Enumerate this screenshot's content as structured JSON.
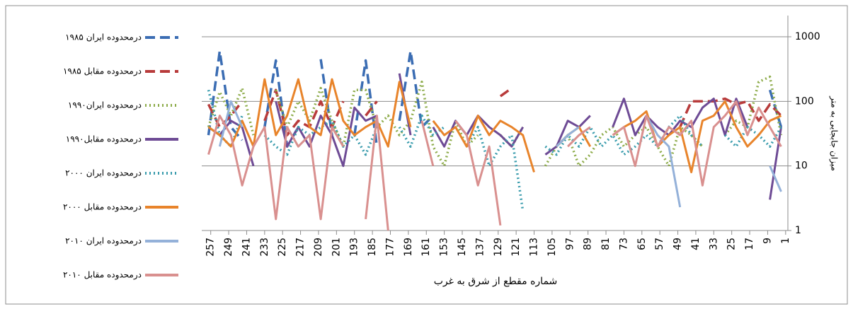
{
  "chart_data": {
    "type": "line",
    "x_label": "شماره مقطع از شرق به غرب",
    "y_label": "میزان جابجایی به متر",
    "log_scale_y": true,
    "grid": true,
    "legend": "left",
    "xlim": [
      261,
      0
    ],
    "ylim": [
      1,
      1000
    ],
    "yticks": [
      1,
      10,
      100,
      1000
    ],
    "xticks": [
      257,
      249,
      241,
      233,
      225,
      217,
      209,
      201,
      193,
      185,
      177,
      169,
      161,
      153,
      145,
      137,
      129,
      121,
      113,
      105,
      97,
      89,
      81,
      73,
      65,
      57,
      49,
      41,
      33,
      25,
      17,
      9,
      1
    ],
    "x": [
      258,
      253,
      248,
      243,
      238,
      233,
      228,
      223,
      218,
      213,
      208,
      203,
      198,
      193,
      188,
      183,
      178,
      173,
      168,
      163,
      158,
      153,
      148,
      143,
      138,
      133,
      128,
      123,
      118,
      113,
      108,
      103,
      98,
      93,
      88,
      83,
      78,
      73,
      68,
      63,
      58,
      53,
      48,
      43,
      38,
      33,
      28,
      23,
      18,
      13,
      8,
      3
    ],
    "series": [
      {
        "name": "۱۹۸۵ درمحدوده ایران",
        "color": "#3b6db3",
        "style": "dashed",
        "values": [
          30,
          600,
          40,
          25,
          null,
          40,
          430,
          20,
          40,
          null,
          450,
          30,
          null,
          30,
          430,
          20,
          null,
          50,
          600,
          40,
          60,
          null,
          30,
          null,
          40,
          null,
          30,
          null,
          null,
          null,
          null,
          null,
          null,
          null,
          null,
          null,
          null,
          null,
          null,
          null,
          null,
          null,
          null,
          null,
          null,
          null,
          null,
          null,
          null,
          null,
          150,
          40
        ]
      },
      {
        "name": "۱۹۸۵ درمحدوده مقابل",
        "color": "#b83b3b",
        "style": "dashed",
        "values": [
          90,
          40,
          60,
          100,
          null,
          50,
          150,
          30,
          50,
          40,
          100,
          40,
          100,
          null,
          60,
          100,
          null,
          100,
          null,
          null,
          60,
          null,
          null,
          null,
          null,
          null,
          120,
          160,
          null,
          null,
          null,
          null,
          30,
          null,
          null,
          null,
          null,
          null,
          null,
          null,
          null,
          null,
          40,
          100,
          100,
          100,
          110,
          90,
          100,
          50,
          90,
          60
        ]
      },
      {
        "name": "۱۹۹۰درمحدوده ایران",
        "color": "#8eac4b",
        "style": "dotted",
        "values": [
          40,
          140,
          60,
          160,
          30,
          null,
          150,
          40,
          100,
          50,
          160,
          50,
          20,
          150,
          150,
          40,
          60,
          30,
          50,
          200,
          20,
          10,
          50,
          20,
          30,
          null,
          30,
          20,
          40,
          null,
          10,
          20,
          30,
          10,
          15,
          30,
          40,
          20,
          30,
          40,
          20,
          10,
          40,
          30,
          20,
          null,
          30,
          50,
          40,
          200,
          240,
          30
        ]
      },
      {
        "name": "۱۹۹۰درمحدوده مقابل",
        "color": "#6e4b95",
        "style": "solid",
        "values": [
          40,
          30,
          50,
          40,
          10,
          null,
          100,
          20,
          40,
          20,
          60,
          30,
          10,
          80,
          50,
          60,
          null,
          270,
          30,
          null,
          40,
          20,
          50,
          30,
          60,
          40,
          30,
          20,
          40,
          null,
          15,
          20,
          50,
          40,
          60,
          null,
          40,
          110,
          30,
          60,
          40,
          30,
          50,
          40,
          80,
          110,
          30,
          110,
          40,
          null,
          3,
          40
        ]
      },
      {
        "name": "۲۰۰۰ درمحدوده ایران",
        "color": "#3a9cad",
        "style": "dotted",
        "values": [
          150,
          30,
          20,
          60,
          null,
          30,
          20,
          15,
          40,
          30,
          40,
          50,
          20,
          30,
          15,
          40,
          null,
          40,
          20,
          60,
          30,
          40,
          null,
          20,
          40,
          10,
          20,
          30,
          2,
          null,
          20,
          15,
          30,
          20,
          40,
          20,
          30,
          15,
          20,
          30,
          20,
          40,
          60,
          30,
          20,
          null,
          30,
          20,
          40,
          30,
          20,
          40
        ]
      },
      {
        "name": "۲۰۰۰ درمحدوده مقابل",
        "color": "#e8842b",
        "style": "solid",
        "values": [
          40,
          30,
          20,
          50,
          20,
          220,
          30,
          60,
          220,
          40,
          30,
          220,
          50,
          30,
          40,
          50,
          20,
          200,
          40,
          null,
          50,
          30,
          40,
          20,
          60,
          30,
          50,
          40,
          30,
          8,
          null,
          20,
          30,
          40,
          20,
          null,
          30,
          40,
          50,
          70,
          20,
          30,
          40,
          8,
          50,
          60,
          100,
          40,
          20,
          30,
          50,
          60
        ]
      },
      {
        "name": "۲۰۱۰ درمحدوده ایران",
        "color": "#94b1d9",
        "style": "solid",
        "values": [
          null,
          20,
          100,
          40,
          null,
          null,
          null,
          null,
          null,
          null,
          null,
          null,
          null,
          null,
          null,
          null,
          null,
          null,
          null,
          null,
          2,
          null,
          null,
          null,
          null,
          null,
          null,
          null,
          1,
          null,
          null,
          20,
          30,
          40,
          null,
          null,
          null,
          null,
          null,
          60,
          30,
          20,
          2.3,
          null,
          null,
          null,
          null,
          null,
          15,
          null,
          10,
          4
        ]
      },
      {
        "name": "۲۰۱۰ درمحدوده مقابل",
        "color": "#d9908f",
        "style": "solid",
        "values": [
          15,
          60,
          30,
          5,
          20,
          40,
          1.5,
          40,
          20,
          30,
          1.5,
          40,
          20,
          null,
          1.5,
          60,
          1,
          null,
          null,
          50,
          10,
          null,
          50,
          30,
          5,
          20,
          1.2,
          null,
          null,
          null,
          null,
          null,
          20,
          30,
          40,
          null,
          30,
          40,
          10,
          60,
          20,
          40,
          30,
          50,
          5,
          40,
          60,
          100,
          30,
          80,
          40,
          20
        ]
      }
    ]
  }
}
